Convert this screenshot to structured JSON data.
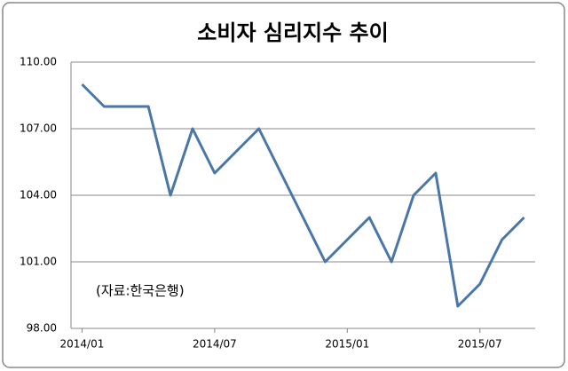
{
  "chart_data": {
    "type": "line",
    "title": "소비자 심리지수 추이",
    "annotation": "(자료:한국은행)",
    "categories": [
      "2014/01",
      null,
      null,
      null,
      null,
      null,
      "2014/07",
      null,
      null,
      null,
      null,
      null,
      "2015/01",
      null,
      null,
      null,
      null,
      null,
      "2015/07",
      null,
      null
    ],
    "series": [
      {
        "color": "#4a76a8",
        "values": [
          109,
          108,
          108,
          108,
          104,
          107,
          105,
          106,
          107,
          105,
          103,
          101,
          102,
          103,
          101,
          104,
          105,
          99,
          100,
          102,
          103
        ]
      }
    ],
    "ylim": [
      98,
      110
    ],
    "yticks": [
      {
        "value": 98,
        "label": "98.00"
      },
      {
        "value": 101,
        "label": "101.00"
      },
      {
        "value": 104,
        "label": "104.00"
      },
      {
        "value": 107,
        "label": "107.00"
      },
      {
        "value": 110,
        "label": "110.00"
      }
    ],
    "grid": true
  }
}
